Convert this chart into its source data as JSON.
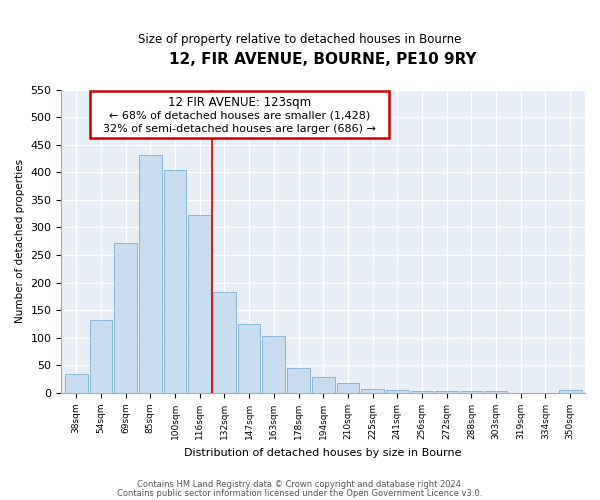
{
  "title": "12, FIR AVENUE, BOURNE, PE10 9RY",
  "subtitle": "Size of property relative to detached houses in Bourne",
  "xlabel": "Distribution of detached houses by size in Bourne",
  "ylabel": "Number of detached properties",
  "bar_color": "#c8ddf0",
  "bar_edge_color": "#7aafd4",
  "categories": [
    "38sqm",
    "54sqm",
    "69sqm",
    "85sqm",
    "100sqm",
    "116sqm",
    "132sqm",
    "147sqm",
    "163sqm",
    "178sqm",
    "194sqm",
    "210sqm",
    "225sqm",
    "241sqm",
    "256sqm",
    "272sqm",
    "288sqm",
    "303sqm",
    "319sqm",
    "334sqm",
    "350sqm"
  ],
  "values": [
    35,
    133,
    272,
    432,
    405,
    322,
    183,
    125,
    103,
    45,
    30,
    19,
    7,
    5,
    3,
    3,
    3,
    3,
    0,
    0,
    6
  ],
  "ylim": [
    0,
    550
  ],
  "yticks": [
    0,
    50,
    100,
    150,
    200,
    250,
    300,
    350,
    400,
    450,
    500,
    550
  ],
  "vline_x": 6,
  "vline_color": "#cc0000",
  "annotation_title": "12 FIR AVENUE: 123sqm",
  "annotation_line1": "← 68% of detached houses are smaller (1,428)",
  "annotation_line2": "32% of semi-detached houses are larger (686) →",
  "annotation_box_color": "#cc0000",
  "footnote1": "Contains HM Land Registry data © Crown copyright and database right 2024.",
  "footnote2": "Contains public sector information licensed under the Open Government Licence v3.0.",
  "background_color": "#e8eef5"
}
